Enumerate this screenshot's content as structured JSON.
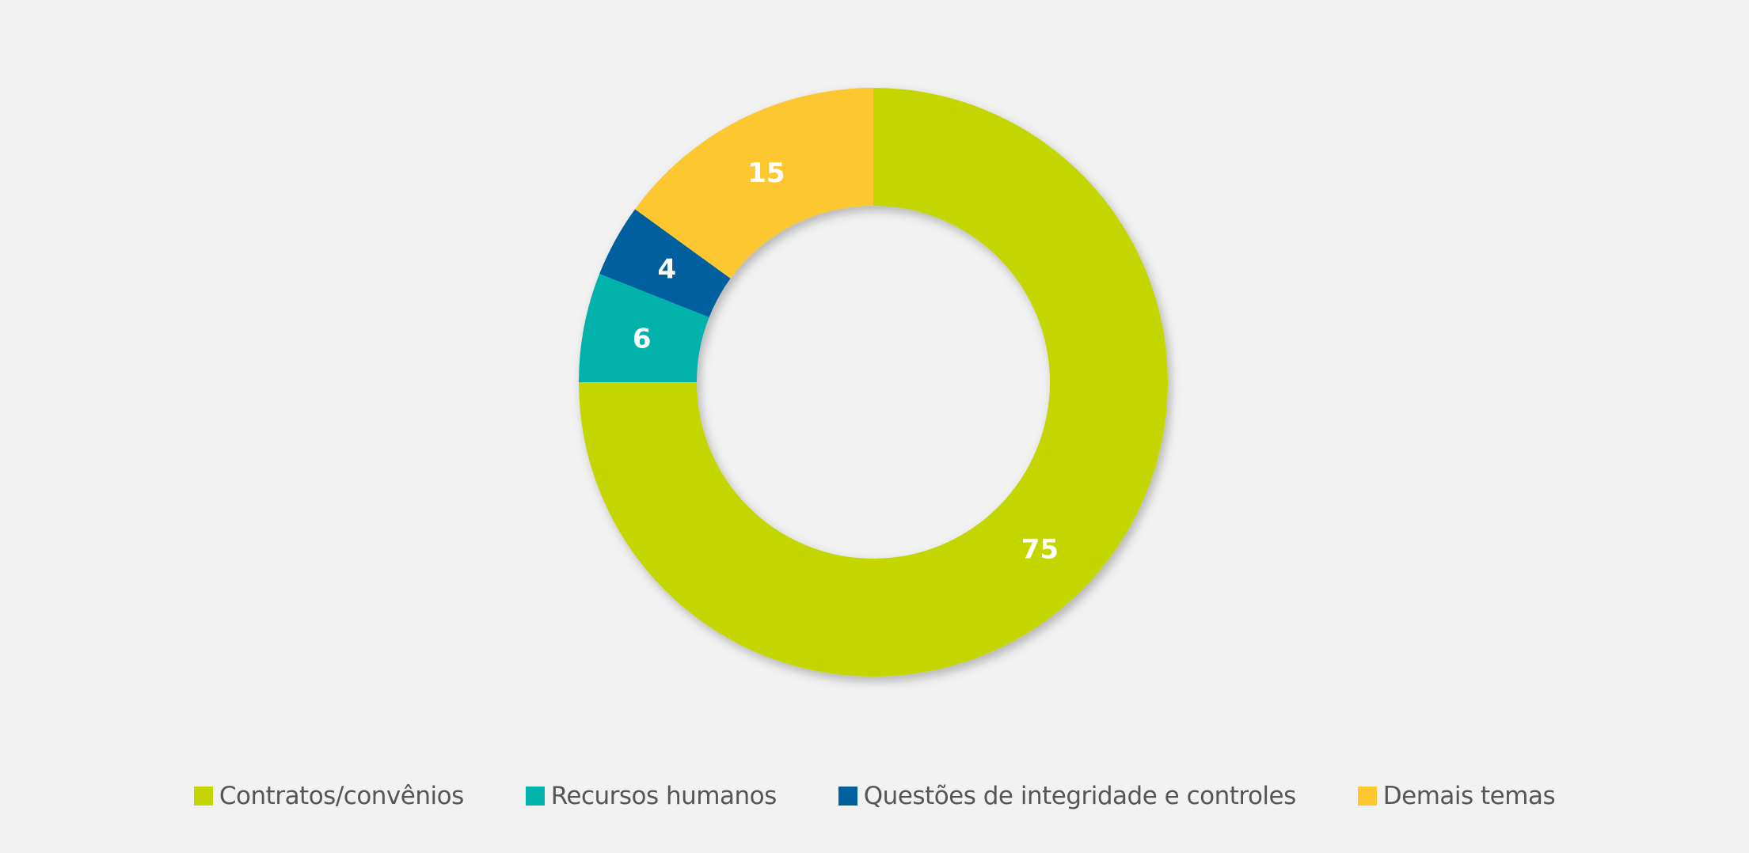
{
  "chart_data": {
    "type": "pie",
    "variant": "donut",
    "title": "",
    "categories": [
      "Contratos/convênios",
      "Recursos humanos",
      "Questões de integridade e controles",
      "Demais temas"
    ],
    "values": [
      75,
      6,
      4,
      15
    ],
    "labels": [
      "75",
      "6",
      "4",
      "15"
    ],
    "colors": [
      "#c4d600",
      "#00b2a9",
      "#005f9e",
      "#fdc731"
    ],
    "start": "top",
    "direction": "clockwise",
    "legend_position": "bottom"
  }
}
